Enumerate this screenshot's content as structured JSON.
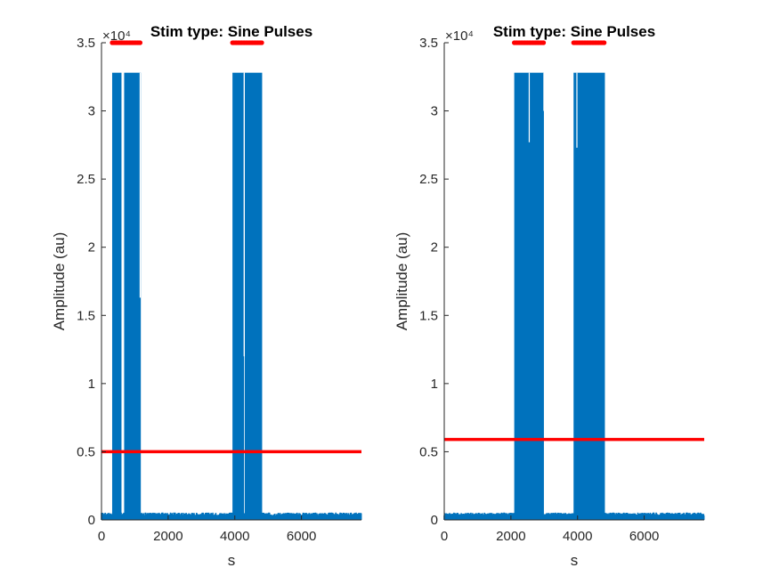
{
  "chart_data": [
    {
      "type": "line",
      "title": "Stim type: Sine Pulses",
      "xlabel": "s",
      "ylabel": "Amplitude (au)",
      "xlim": [
        0,
        7800
      ],
      "ylim": [
        0,
        3.5
      ],
      "y_exponent_label": "×10⁴",
      "xticks": [
        0,
        2000,
        4000,
        6000
      ],
      "xtick_labels": [
        "0",
        "2000",
        "4000",
        "6000"
      ],
      "yticks": [
        0,
        0.5,
        1,
        1.5,
        2,
        2.5,
        3,
        3.5
      ],
      "ytick_labels": [
        "0",
        "0.5",
        "1",
        "1.5",
        "2",
        "2.5",
        "3",
        "3.5"
      ],
      "signal_color": "#0072BD",
      "threshold_color": "#FF0000",
      "baseline": 0.04,
      "threshold": 0.5,
      "bursts": [
        {
          "x0": 320,
          "x1": 600,
          "peak": 3.28
        },
        {
          "x0": 680,
          "x1": 1180,
          "peak": 3.28
        },
        {
          "x0": 3930,
          "x1": 4280,
          "peak": 3.28
        },
        {
          "x0": 4300,
          "x1": 4820,
          "peak": 3.28
        }
      ],
      "dips": [
        {
          "x": 1160,
          "y": 1.63
        },
        {
          "x": 4280,
          "y": 1.2
        }
      ],
      "stim_markers": {
        "y": 3.5,
        "ranges": [
          [
            320,
            1180
          ],
          [
            3930,
            4820
          ]
        ]
      }
    },
    {
      "type": "line",
      "title": "Stim type: Sine Pulses",
      "xlabel": "s",
      "ylabel": "Amplitude (au)",
      "xlim": [
        0,
        7800
      ],
      "ylim": [
        0,
        3.5
      ],
      "y_exponent_label": "×10⁴",
      "xticks": [
        0,
        2000,
        4000,
        6000
      ],
      "xtick_labels": [
        "0",
        "2000",
        "4000",
        "6000"
      ],
      "yticks": [
        0,
        0.5,
        1,
        1.5,
        2,
        2.5,
        3,
        3.5
      ],
      "ytick_labels": [
        "0",
        "0.5",
        "1",
        "1.5",
        "2",
        "2.5",
        "3",
        "3.5"
      ],
      "signal_color": "#0072BD",
      "threshold_color": "#FF0000",
      "baseline": 0.04,
      "threshold": 0.59,
      "bursts": [
        {
          "x0": 2100,
          "x1": 2990,
          "peak": 3.28
        },
        {
          "x0": 3880,
          "x1": 4820,
          "peak": 3.28
        }
      ],
      "dips": [
        {
          "x": 2550,
          "y": 2.77
        },
        {
          "x": 2990,
          "y": 3.0
        },
        {
          "x": 3980,
          "y": 2.73
        }
      ],
      "stim_markers": {
        "y": 3.5,
        "ranges": [
          [
            2100,
            2990
          ],
          [
            3880,
            4820
          ]
        ]
      }
    }
  ]
}
